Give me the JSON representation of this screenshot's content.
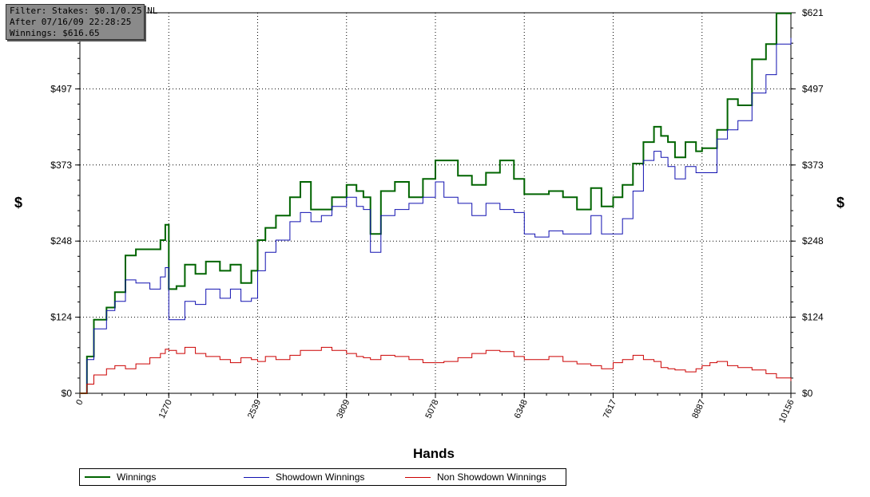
{
  "filter": {
    "line1": "Filter: Stakes: $0.1/0.25 NL",
    "line2": "After 07/16/09 22:28:25",
    "line3": "Winnings: $616.65"
  },
  "chart_data": {
    "type": "line",
    "xlabel": "Hands",
    "ylabel": "$",
    "x_ticks": [
      "0",
      "1270",
      "2539",
      "3809",
      "5078",
      "6348",
      "7617",
      "8887",
      "10156"
    ],
    "y_ticks": [
      "$0",
      "$124",
      "$248",
      "$373",
      "$497",
      "$621"
    ],
    "xlim": [
      0,
      10156
    ],
    "ylim": [
      0,
      621
    ],
    "grid": true,
    "legend_position": "bottom",
    "colors": {
      "Winnings": "#006400",
      "Showdown Winnings": "#1010b0",
      "Non Showdown Winnings": "#cc0000"
    },
    "x": [
      0,
      100,
      200,
      380,
      500,
      650,
      800,
      1000,
      1150,
      1220,
      1270,
      1380,
      1500,
      1650,
      1800,
      2000,
      2150,
      2300,
      2450,
      2539,
      2650,
      2800,
      3000,
      3150,
      3300,
      3450,
      3600,
      3809,
      3950,
      4050,
      4150,
      4300,
      4500,
      4700,
      4900,
      5078,
      5200,
      5400,
      5600,
      5800,
      6000,
      6200,
      6348,
      6500,
      6700,
      6900,
      7100,
      7300,
      7450,
      7617,
      7750,
      7900,
      8050,
      8200,
      8300,
      8400,
      8500,
      8650,
      8800,
      8887,
      9000,
      9100,
      9250,
      9400,
      9600,
      9800,
      9950,
      10156
    ],
    "series": [
      {
        "name": "Winnings",
        "values": [
          0,
          60,
          120,
          140,
          165,
          225,
          235,
          235,
          250,
          275,
          170,
          175,
          210,
          195,
          215,
          200,
          210,
          180,
          200,
          250,
          270,
          290,
          320,
          345,
          300,
          300,
          320,
          340,
          330,
          320,
          260,
          330,
          345,
          320,
          350,
          380,
          380,
          355,
          340,
          360,
          380,
          350,
          325,
          325,
          330,
          320,
          300,
          335,
          305,
          320,
          340,
          375,
          410,
          435,
          420,
          410,
          385,
          410,
          395,
          400,
          400,
          430,
          480,
          470,
          545,
          570,
          620,
          621
        ]
      },
      {
        "name": "Showdown Winnings",
        "values": [
          0,
          55,
          105,
          135,
          150,
          185,
          180,
          170,
          190,
          205,
          120,
          120,
          150,
          145,
          170,
          155,
          170,
          150,
          155,
          200,
          230,
          250,
          280,
          295,
          280,
          290,
          305,
          320,
          305,
          300,
          230,
          290,
          300,
          310,
          320,
          345,
          320,
          310,
          290,
          310,
          300,
          295,
          260,
          255,
          265,
          260,
          260,
          290,
          260,
          260,
          285,
          330,
          380,
          395,
          385,
          370,
          350,
          370,
          360,
          360,
          360,
          415,
          430,
          445,
          490,
          520,
          570,
          580
        ]
      },
      {
        "name": "Non Showdown Winnings",
        "values": [
          0,
          15,
          30,
          40,
          45,
          40,
          48,
          58,
          65,
          72,
          70,
          65,
          75,
          65,
          60,
          55,
          50,
          58,
          55,
          52,
          60,
          55,
          62,
          70,
          70,
          75,
          70,
          65,
          60,
          58,
          55,
          62,
          60,
          55,
          50,
          50,
          52,
          58,
          65,
          70,
          68,
          60,
          55,
          55,
          60,
          52,
          48,
          45,
          40,
          50,
          55,
          62,
          55,
          52,
          42,
          40,
          38,
          35,
          40,
          45,
          50,
          52,
          45,
          42,
          38,
          32,
          25,
          20
        ]
      }
    ]
  }
}
